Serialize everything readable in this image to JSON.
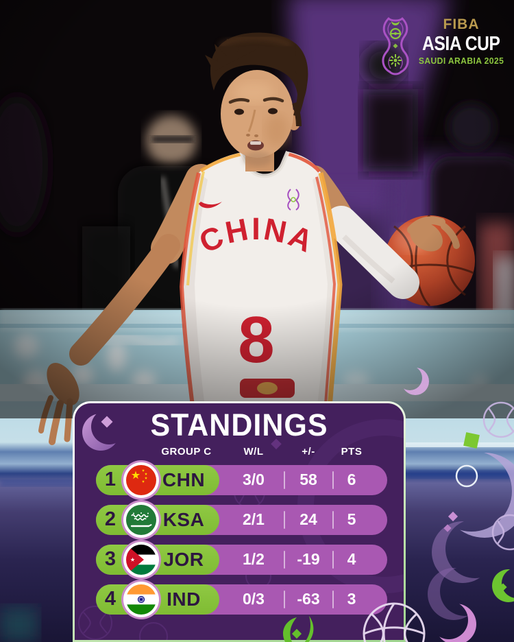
{
  "logo": {
    "fiba": "FIBA",
    "title": "ASIA CUP",
    "subtitle": "SAUDI ARABIA 2025"
  },
  "player": {
    "jersey_team": "CHINA",
    "jersey_number": "8"
  },
  "standings": {
    "title": "STANDINGS",
    "group_label": "GROUP C",
    "columns": {
      "wl": "W/L",
      "plusminus": "+/-",
      "pts": "PTS"
    },
    "rows": [
      {
        "rank": "1",
        "team": "CHN",
        "flag": "china-flag",
        "wl": "3/0",
        "plusminus": "58",
        "pts": "6"
      },
      {
        "rank": "2",
        "team": "KSA",
        "flag": "saudi-arabia-flag",
        "wl": "2/1",
        "plusminus": "24",
        "pts": "5"
      },
      {
        "rank": "3",
        "team": "JOR",
        "flag": "jordan-flag",
        "wl": "1/2",
        "plusminus": "-19",
        "pts": "4"
      },
      {
        "rank": "4",
        "team": "IND",
        "flag": "india-flag",
        "wl": "0/3",
        "plusminus": "-63",
        "pts": "3"
      }
    ]
  },
  "colors": {
    "panel_purple": "#44205d",
    "row_strip_purple": "#a958b2",
    "pill_green": "#85c23c",
    "accent_green": "#8dc63f",
    "fiba_gold": "#b99a4e",
    "jersey_red": "#cf2130"
  }
}
